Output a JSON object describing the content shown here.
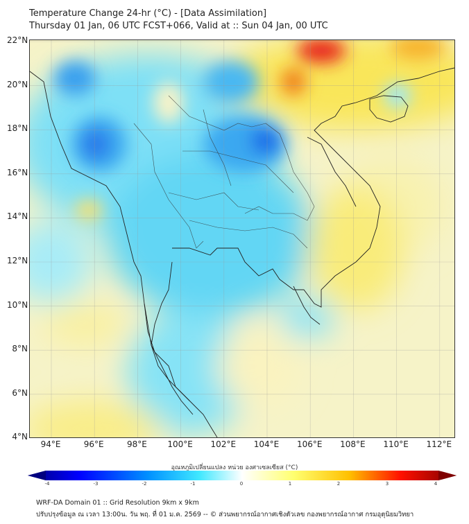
{
  "header": {
    "title": "Temperature Change 24-hr (°C) - [Data Assimilation]",
    "subtitle": "Thursday 01 Jan, 06 UTC FCST+066, Valid at :: Sun 04 Jan, 00 UTC"
  },
  "map": {
    "lat_ticks": [
      "22°N",
      "20°N",
      "18°N",
      "16°N",
      "14°N",
      "12°N",
      "10°N",
      "8°N",
      "6°N",
      "4°N"
    ],
    "lon_ticks": [
      "94°E",
      "96°E",
      "98°E",
      "100°E",
      "102°E",
      "104°E",
      "106°E",
      "108°E",
      "110°E",
      "112°E"
    ]
  },
  "colorbar": {
    "label": "อุณหภูมิเปลี่ยนแปลง หน่วย องศาเซลเซียส (°C)",
    "ticks": [
      "-4",
      "-3",
      "-2",
      "-1",
      "0",
      "1",
      "2",
      "3",
      "4"
    ],
    "min": -4,
    "max": 4,
    "colors": [
      "#00007f",
      "#0000ff",
      "#0080ff",
      "#40e0ff",
      "#ffffff",
      "#ffff80",
      "#ffd000",
      "#ff0000",
      "#7f0000"
    ]
  },
  "footer": {
    "line1": "WRF-DA Domain 01 :: Grid Resolution 9km x 9km",
    "line2": "ปรับปรุงข้อมูล ณ เวลา 13:00น. วัน พฤ. ที่ 01 ม.ค. 2569 -- © ส่วนพยากรณ์อากาศเชิงตัวเลข กองพยากรณ์อากาศ กรมอุตุนิยมวิทยา"
  }
}
